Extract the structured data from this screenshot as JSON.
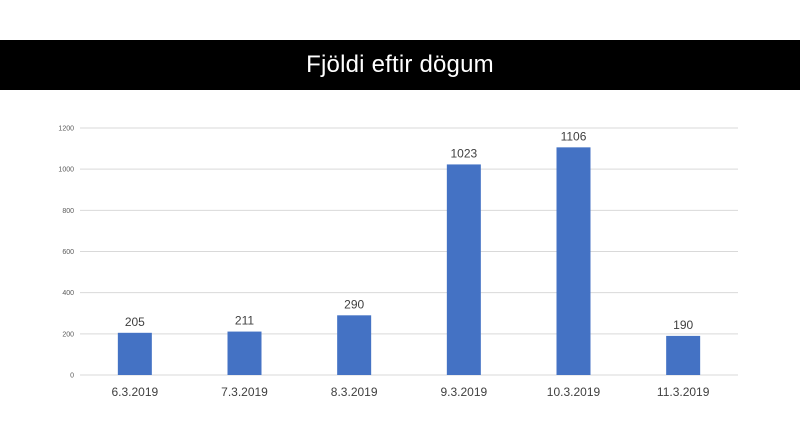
{
  "title": "Fjöldi eftir dögum",
  "colors": {
    "bar": "#4472C4",
    "gridline": "#D9D9D9",
    "title_background": "#000000",
    "title_text": "#FFFFFF"
  },
  "chart_data": {
    "type": "bar",
    "title": "Fjöldi eftir dögum",
    "categories": [
      "6.3.2019",
      "7.3.2019",
      "8.3.2019",
      "9.3.2019",
      "10.3.2019",
      "11.3.2019"
    ],
    "values": [
      205,
      211,
      290,
      1023,
      1106,
      190
    ],
    "data_labels": [
      "205",
      "211",
      "290",
      "1023",
      "1106",
      "190"
    ],
    "xlabel": "",
    "ylabel": "",
    "ylim": [
      0,
      1200
    ],
    "yticks": [
      0,
      200,
      400,
      600,
      800,
      1000,
      1200
    ],
    "ytick_labels": [
      "0",
      "200",
      "400",
      "600",
      "800",
      "1000",
      "1200"
    ],
    "grid": true,
    "legend": "none"
  }
}
